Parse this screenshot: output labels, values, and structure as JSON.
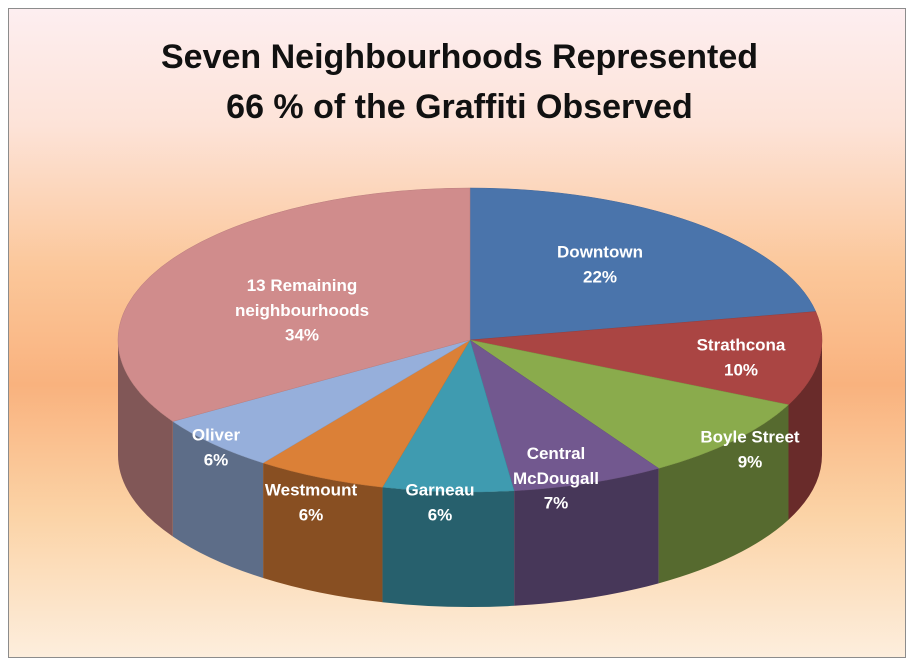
{
  "chart_data": {
    "type": "pie",
    "title": [
      "Seven Neighbourhoods Represented",
      "66 % of the Graffiti Observed"
    ],
    "categories": [
      "Downtown",
      "Strathcona",
      "Boyle Street",
      "Central McDougall",
      "Garneau",
      "Westmount",
      "Oliver",
      "13 Remaining neighbourhoods"
    ],
    "values": [
      22,
      10,
      9,
      7,
      6,
      6,
      6,
      34
    ],
    "value_labels": [
      "22%",
      "10%",
      "9%",
      "7%",
      "6%",
      "6%",
      "6%",
      "34%"
    ],
    "colors": [
      "#4a74ab",
      "#aa4543",
      "#8aab4c",
      "#72588f",
      "#3f9bb0",
      "#db8037",
      "#96afdb",
      "#d08c8c"
    ]
  }
}
